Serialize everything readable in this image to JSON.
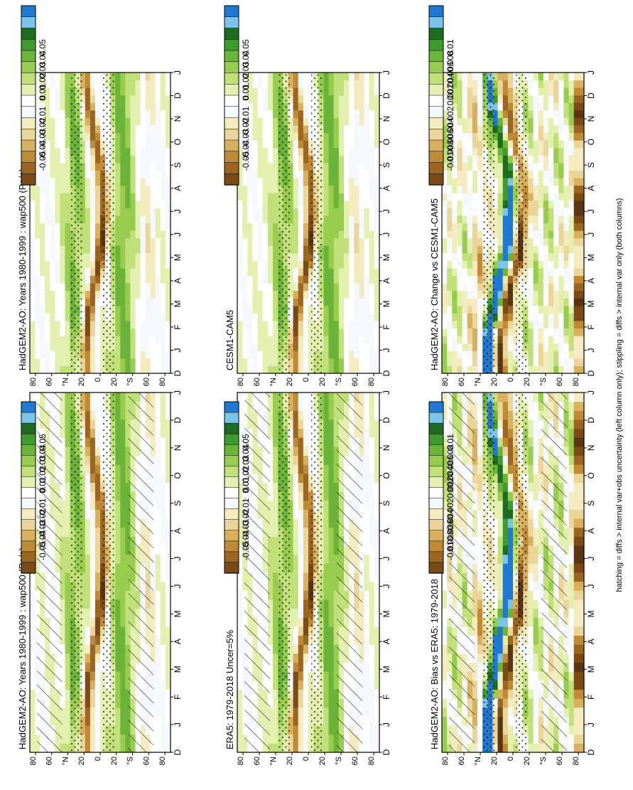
{
  "footnote": "hatching = diffs > internal var+obs uncertainty (left column only); stippling = diffs > internal var only (both columns)",
  "chart_data": [
    {
      "type": "heatmap",
      "title": "HadGEM2-AO: Years 1980-1999 : wap500 (Pa/s)",
      "x_months": [
        "D",
        "J",
        "F",
        "M",
        "A",
        "M",
        "J",
        "J",
        "A",
        "S",
        "O",
        "N",
        "D",
        "J"
      ],
      "y_ticks": [
        "80",
        "60",
        "°N",
        "20",
        "0",
        "20",
        "°S",
        "60",
        "80"
      ],
      "colorbar": [
        "0.05",
        "0.04",
        "0.03",
        "0.02",
        "0.01",
        "0",
        "-0.01",
        "-0.02",
        "-0.03",
        "-0.04",
        "-0.05"
      ],
      "hatching": true
    },
    {
      "type": "heatmap",
      "title": "HadGEM2-AO: Years 1980-1999 : wap500 (Pa/s)",
      "x_months": [
        "D",
        "J",
        "F",
        "M",
        "A",
        "M",
        "J",
        "J",
        "A",
        "S",
        "O",
        "N",
        "D",
        "J"
      ],
      "y_ticks": [
        "80",
        "60",
        "°N",
        "20",
        "0",
        "20",
        "°S",
        "60",
        "80"
      ],
      "colorbar": [
        "0.05",
        "0.04",
        "0.03",
        "0.02",
        "0.01",
        "0",
        "-0.01",
        "-0.02",
        "-0.03",
        "-0.04",
        "-0.05"
      ],
      "hatching": false
    },
    {
      "type": "heatmap",
      "title": "ERA5: 1979-2018 Uncer=5%",
      "x_months": [
        "D",
        "J",
        "F",
        "M",
        "A",
        "M",
        "J",
        "J",
        "A",
        "S",
        "O",
        "N",
        "D",
        "J"
      ],
      "y_ticks": [
        "80",
        "60",
        "°N",
        "20",
        "0",
        "20",
        "°S",
        "60",
        "80"
      ],
      "colorbar": [
        "0.05",
        "0.04",
        "0.03",
        "0.02",
        "0.01",
        "0",
        "-0.01",
        "-0.02",
        "-0.03",
        "-0.04",
        "-0.05"
      ],
      "hatching": true
    },
    {
      "type": "heatmap",
      "title": "CESM1-CAM5",
      "x_months": [
        "D",
        "J",
        "F",
        "M",
        "A",
        "M",
        "J",
        "J",
        "A",
        "S",
        "O",
        "N",
        "D",
        "J"
      ],
      "y_ticks": [
        "80",
        "60",
        "°N",
        "20",
        "0",
        "20",
        "°S",
        "60",
        "80"
      ],
      "colorbar": [
        "0.05",
        "0.04",
        "0.03",
        "0.02",
        "0.01",
        "0",
        "-0.01",
        "-0.02",
        "-0.03",
        "-0.04",
        "-0.05"
      ],
      "hatching": false
    },
    {
      "type": "heatmap",
      "title": "HadGEM2-AO: Bias vs ERA5: 1979-2018",
      "x_months": [
        "D",
        "J",
        "F",
        "M",
        "A",
        "M",
        "J",
        "J",
        "A",
        "S",
        "O",
        "N",
        "D",
        "J"
      ],
      "y_ticks": [
        "80",
        "60",
        "°N",
        "20",
        "0",
        "20",
        "°S",
        "60",
        "80"
      ],
      "colorbar": [
        "0.01",
        "0.008",
        "0.006",
        "0.004",
        "0.002",
        "0",
        "-0.002",
        "-0.004",
        "-0.006",
        "-0.008",
        "-0.01"
      ],
      "hatching": true
    },
    {
      "type": "heatmap",
      "title": "HadGEM2-AO: Change vs CESM1-CAM5",
      "x_months": [
        "D",
        "J",
        "F",
        "M",
        "A",
        "M",
        "J",
        "J",
        "A",
        "S",
        "O",
        "N",
        "D",
        "J"
      ],
      "y_ticks": [
        "80",
        "60",
        "°N",
        "20",
        "0",
        "20",
        "°S",
        "60",
        "80"
      ],
      "colorbar": [
        "0.01",
        "0.008",
        "0.006",
        "0.004",
        "0.002",
        "0",
        "-0.002",
        "-0.004",
        "-0.006",
        "-0.008",
        "-0.01"
      ],
      "hatching": false
    }
  ],
  "palette": [
    "#1f78d1",
    "#7cc3e8",
    "#1e6b21",
    "#3f9a2f",
    "#6cb33a",
    "#98cc4f",
    "#c2e07a",
    "#e3f0b0",
    "#ffffff",
    "#f5f8fd",
    "#f4ecc0",
    "#ead59a",
    "#d8b160",
    "#bf8a35",
    "#9b6522",
    "#7a4b16",
    "#5a3512"
  ]
}
